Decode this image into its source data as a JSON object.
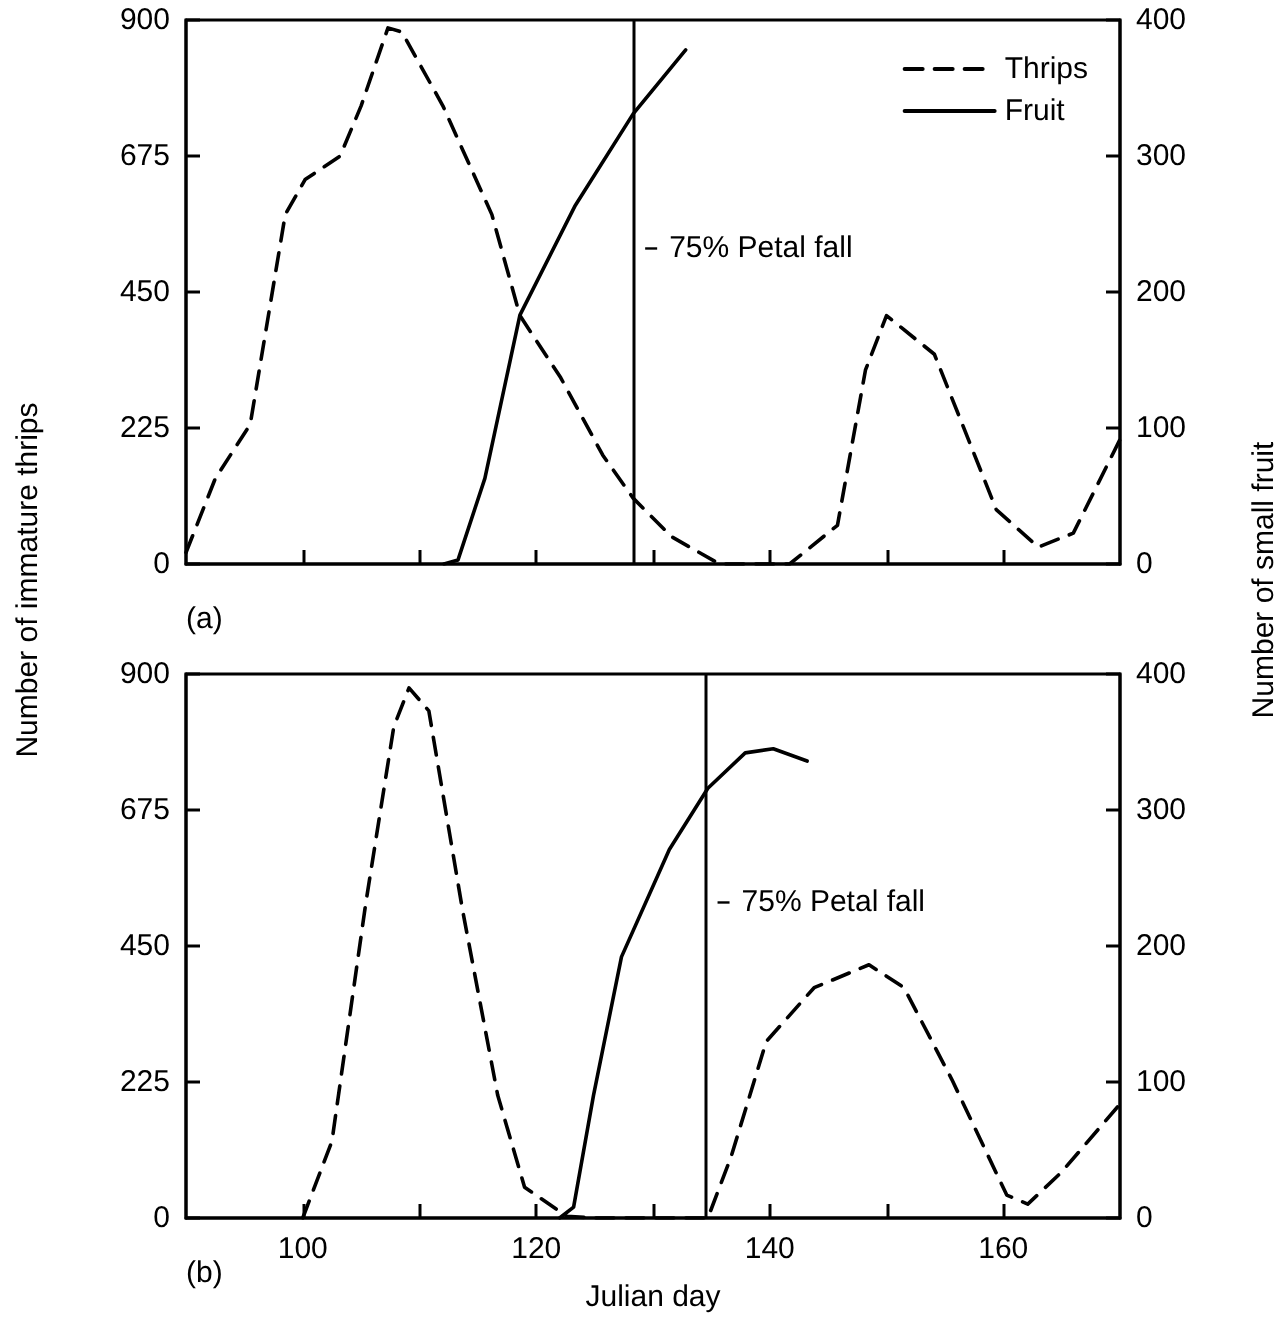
{
  "chart_data": [
    {
      "type": "line",
      "ylabel": "Number of immature thrips",
      "y2label": "Number of small fruit",
      "annotations": [
        "(a)"
      ],
      "legend": "top right",
      "grid": false,
      "marker": "none",
      "tick_labels": "y",
      "xlim": [
        90,
        170
      ],
      "xticks": [
        {
          "value": 100,
          "label": null
        },
        {
          "value": 110,
          "label": null
        },
        {
          "value": 120,
          "label": null
        },
        {
          "value": 130,
          "label": null
        },
        {
          "value": 140,
          "label": null
        },
        {
          "value": 150,
          "label": null
        },
        {
          "value": 160,
          "label": null
        }
      ],
      "ylim": [
        0,
        900
      ],
      "yticks": [
        0,
        225,
        450,
        675,
        900
      ],
      "y2lim": [
        0,
        400
      ],
      "y2ticks": [
        0,
        100,
        200,
        300,
        400
      ],
      "ref_lines": [
        {
          "axis": "x",
          "value": 128.3,
          "label": "75% Petal fall",
          "color": "#000000"
        }
      ],
      "series": [
        {
          "name": "Thrips",
          "color": "#000000",
          "line_style": "dashed",
          "x": [
            90,
            92.5,
            95.5,
            98.5,
            100.2,
            103.2,
            105,
            107.3,
            108.5,
            112,
            116.2,
            118.6,
            122.1,
            125.7,
            128.3,
            131.6,
            135.7,
            141.7,
            145.8,
            148.2,
            150,
            154.1,
            156.5,
            159.4,
            163,
            166,
            170
          ],
          "values": [
            19,
            141,
            231,
            578,
            636,
            675,
            758,
            887,
            880,
            758,
            578,
            411,
            308,
            180,
            109,
            45,
            0,
            0,
            64,
            321,
            411,
            347,
            231,
            90,
            28,
            51,
            206
          ]
        },
        {
          "name": "Fruit",
          "color": "#000000",
          "line_style": "solid",
          "axis": "y2",
          "x": [
            112.1,
            113.3,
            115.6,
            118.6,
            123.3,
            128.3,
            132.8
          ],
          "values": [
            0,
            3,
            63,
            183,
            263,
            331,
            378
          ]
        }
      ]
    },
    {
      "type": "line",
      "xlabel": "Julian day",
      "annotations": [
        "(b)"
      ],
      "grid": false,
      "marker": "none",
      "xlim": [
        90,
        170
      ],
      "xticks": [
        {
          "value": 100,
          "label": "100"
        },
        {
          "value": 110,
          "label": null
        },
        {
          "value": 120,
          "label": "120"
        },
        {
          "value": 130,
          "label": null
        },
        {
          "value": 140,
          "label": "140"
        },
        {
          "value": 150,
          "label": null
        },
        {
          "value": 160,
          "label": "160"
        }
      ],
      "ylim": [
        0,
        900
      ],
      "yticks": [
        0,
        225,
        450,
        675,
        900
      ],
      "y2lim": [
        0,
        400
      ],
      "y2ticks": [
        0,
        100,
        200,
        300,
        400
      ],
      "ref_lines": [
        {
          "axis": "x",
          "value": 134.5,
          "label": "75% Petal fall",
          "color": "#000000"
        }
      ],
      "series": [
        {
          "color": "#000000",
          "line_style": "dashed",
          "x": [
            100,
            102.5,
            105.4,
            107.8,
            109.1,
            110.8,
            113.7,
            116.7,
            119,
            122.6,
            124.9,
            134.7,
            136.7,
            139.7,
            143.8,
            148.5,
            151.5,
            155.6,
            160.3,
            162.1,
            165,
            169.8
          ],
          "values": [
            0,
            127,
            521,
            813,
            877,
            839,
            508,
            203,
            51,
            3,
            0,
            0,
            102,
            292,
            381,
            419,
            381,
            229,
            38,
            23,
            76,
            184
          ]
        },
        {
          "color": "#000000",
          "line_style": "solid",
          "axis": "y2",
          "x": [
            122,
            123.2,
            124.9,
            127.3,
            131.4,
            134.7,
            137.9,
            140.3,
            143.2
          ],
          "values": [
            0,
            8,
            90,
            192,
            271,
            316,
            342,
            345,
            336
          ]
        }
      ]
    }
  ]
}
